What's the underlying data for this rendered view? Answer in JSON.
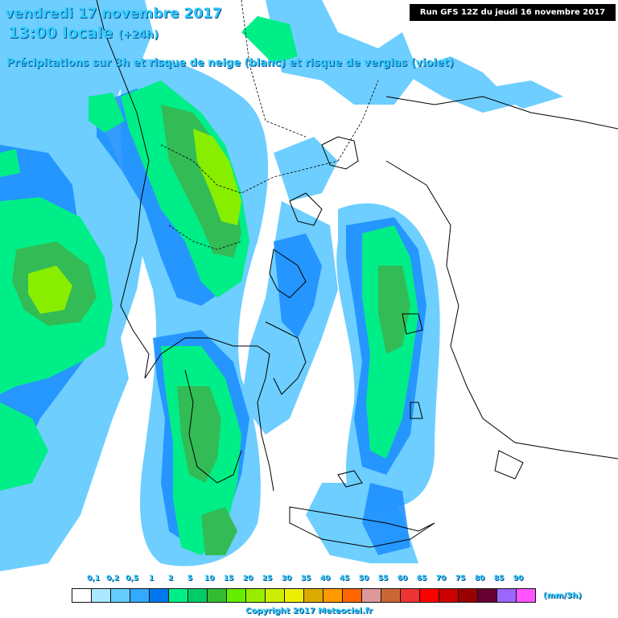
{
  "header": {
    "date": "vendredi 17 novembre 2017",
    "time_local": "13:00 locale",
    "lead": "(+24h)",
    "subtitle": "Précipitations sur 3h et risque de neige (blanc) et risque de verglas (violet)",
    "run": "Run GFS 12Z du jeudi 16 novembre 2017"
  },
  "legend": {
    "labels": [
      "0,1",
      "0,2",
      "0,5",
      "1",
      "2",
      "5",
      "10",
      "15",
      "20",
      "25",
      "30",
      "35",
      "40",
      "45",
      "50",
      "55",
      "60",
      "65",
      "70",
      "75",
      "80",
      "85",
      "90"
    ],
    "colors": [
      "#ffffff",
      "#aae8ff",
      "#66ccff",
      "#33aaff",
      "#0077ee",
      "#00ee88",
      "#00cc66",
      "#33bb33",
      "#66ee00",
      "#99ee00",
      "#ccee00",
      "#eeee00",
      "#ddaa00",
      "#ff9900",
      "#ff6600",
      "#dd9999",
      "#cc6633",
      "#ee3333",
      "#ff0000",
      "#cc0000",
      "#990000",
      "#660033",
      "#9966ff",
      "#ff55ff"
    ],
    "unit": "(mm/3h)"
  },
  "footer": {
    "copyright": "Copyright 2017 Meteociel.fr"
  },
  "map": {
    "region": "Greece and southern Balkans",
    "land_color": "#ffffff",
    "border_color": "#000000",
    "precip_colors": {
      "very_light": "#aae8ff",
      "light": "#66ccff",
      "moderate_blue": "#1e90ff",
      "green": "#00ee88",
      "dark_green": "#33bb55",
      "lime": "#88ee00"
    }
  }
}
